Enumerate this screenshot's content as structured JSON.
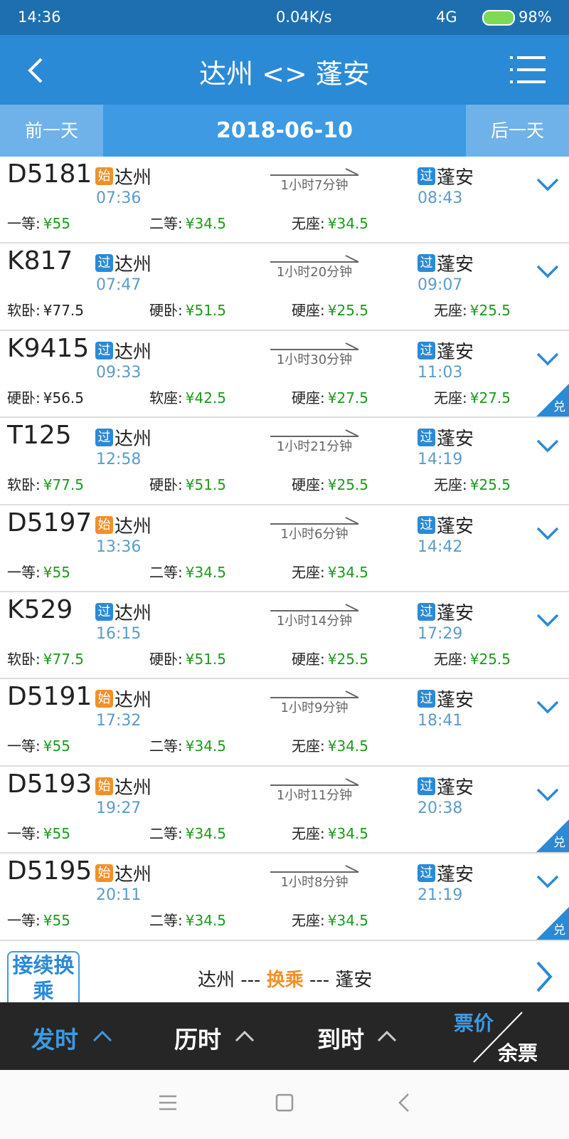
{
  "status_bar": {
    "time": "14:36",
    "speed": "0.04K/s",
    "network": "4G",
    "battery": "98%"
  },
  "header": {
    "title": "达州 <> 蓬安"
  },
  "date_bar": {
    "prev": "前一天",
    "date": "2018-06-10",
    "next": "后一天"
  },
  "trains": [
    {
      "number": "D5181",
      "from_tag": "始",
      "from": "达州",
      "depart": "07:36",
      "duration": "1小时7分钟",
      "to_tag": "过",
      "to": "蓬安",
      "arrive": "08:43",
      "prices": [
        {
          "label": "一等:",
          "value": "¥55",
          "color": "#1a9a1a"
        },
        {
          "label": "二等:",
          "value": "¥34.5",
          "color": "#1a9a1a"
        },
        {
          "label": "无座:",
          "value": "¥34.5",
          "color": "#1a9a1a"
        }
      ]
    },
    {
      "number": "K817",
      "from_tag": "过",
      "from": "达州",
      "depart": "07:47",
      "duration": "1小时20分钟",
      "to_tag": "过",
      "to": "蓬安",
      "arrive": "09:07",
      "prices": [
        {
          "label": "软卧:",
          "value": "¥77.5",
          "color": "#222222"
        },
        {
          "label": "硬卧:",
          "value": "¥51.5",
          "color": "#1a9a1a"
        },
        {
          "label": "硬座:",
          "value": "¥25.5",
          "color": "#1a9a1a"
        },
        {
          "label": "无座:",
          "value": "¥25.5",
          "color": "#1a9a1a"
        }
      ]
    },
    {
      "number": "K9415",
      "from_tag": "过",
      "from": "达州",
      "depart": "09:33",
      "duration": "1小时30分钟",
      "to_tag": "过",
      "to": "蓬安",
      "arrive": "11:03",
      "badge": "兑",
      "prices": [
        {
          "label": "硬卧:",
          "value": "¥56.5",
          "color": "#222222"
        },
        {
          "label": "软座:",
          "value": "¥42.5",
          "color": "#1a9a1a"
        },
        {
          "label": "硬座:",
          "value": "¥27.5",
          "color": "#1a9a1a"
        },
        {
          "label": "无座:",
          "value": "¥27.5",
          "color": "#1a9a1a"
        }
      ]
    },
    {
      "number": "T125",
      "from_tag": "过",
      "from": "达州",
      "depart": "12:58",
      "duration": "1小时21分钟",
      "to_tag": "过",
      "to": "蓬安",
      "arrive": "14:19",
      "prices": [
        {
          "label": "软卧:",
          "value": "¥77.5",
          "color": "#1a9a1a"
        },
        {
          "label": "硬卧:",
          "value": "¥51.5",
          "color": "#1a9a1a"
        },
        {
          "label": "硬座:",
          "value": "¥25.5",
          "color": "#1a9a1a"
        },
        {
          "label": "无座:",
          "value": "¥25.5",
          "color": "#1a9a1a"
        }
      ]
    },
    {
      "number": "D5197",
      "from_tag": "始",
      "from": "达州",
      "depart": "13:36",
      "duration": "1小时6分钟",
      "to_tag": "过",
      "to": "蓬安",
      "arrive": "14:42",
      "prices": [
        {
          "label": "一等:",
          "value": "¥55",
          "color": "#1a9a1a"
        },
        {
          "label": "二等:",
          "value": "¥34.5",
          "color": "#1a9a1a"
        },
        {
          "label": "无座:",
          "value": "¥34.5",
          "color": "#1a9a1a"
        }
      ]
    },
    {
      "number": "K529",
      "from_tag": "过",
      "from": "达州",
      "depart": "16:15",
      "duration": "1小时14分钟",
      "to_tag": "过",
      "to": "蓬安",
      "arrive": "17:29",
      "prices": [
        {
          "label": "软卧:",
          "value": "¥77.5",
          "color": "#1a9a1a"
        },
        {
          "label": "硬卧:",
          "value": "¥51.5",
          "color": "#1a9a1a"
        },
        {
          "label": "硬座:",
          "value": "¥25.5",
          "color": "#1a9a1a"
        },
        {
          "label": "无座:",
          "value": "¥25.5",
          "color": "#1a9a1a"
        }
      ]
    },
    {
      "number": "D5191",
      "from_tag": "始",
      "from": "达州",
      "depart": "17:32",
      "duration": "1小时9分钟",
      "to_tag": "过",
      "to": "蓬安",
      "arrive": "18:41",
      "prices": [
        {
          "label": "一等:",
          "value": "¥55",
          "color": "#1a9a1a"
        },
        {
          "label": "二等:",
          "value": "¥34.5",
          "color": "#1a9a1a"
        },
        {
          "label": "无座:",
          "value": "¥34.5",
          "color": "#1a9a1a"
        }
      ]
    },
    {
      "number": "D5193",
      "from_tag": "始",
      "from": "达州",
      "depart": "19:27",
      "duration": "1小时11分钟",
      "to_tag": "过",
      "to": "蓬安",
      "arrive": "20:38",
      "badge": "兑",
      "prices": [
        {
          "label": "一等:",
          "value": "¥55",
          "color": "#1a9a1a"
        },
        {
          "label": "二等:",
          "value": "¥34.5",
          "color": "#1a9a1a"
        },
        {
          "label": "无座:",
          "value": "¥34.5",
          "color": "#1a9a1a"
        }
      ]
    },
    {
      "number": "D5195",
      "from_tag": "始",
      "from": "达州",
      "depart": "20:11",
      "duration": "1小时8分钟",
      "to_tag": "过",
      "to": "蓬安",
      "arrive": "21:19",
      "badge": "兑",
      "prices": [
        {
          "label": "一等:",
          "value": "¥55",
          "color": "#1a9a1a"
        },
        {
          "label": "二等:",
          "value": "¥34.5",
          "color": "#1a9a1a"
        },
        {
          "label": "无座:",
          "value": "¥34.5",
          "color": "#1a9a1a"
        }
      ]
    }
  ],
  "transfer": {
    "button": "接续换乘",
    "from": "达州",
    "sep1": "---",
    "middle": "换乘",
    "sep2": "---",
    "to": "蓬安"
  },
  "sort_bar": {
    "depart": "发时",
    "duration": "历时",
    "arrive": "到时",
    "price": "票价",
    "remaining": "余票"
  }
}
